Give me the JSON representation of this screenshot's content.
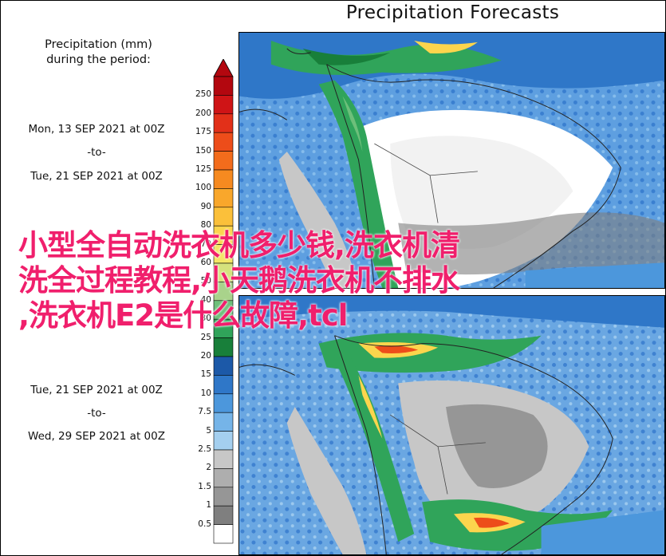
{
  "title": "Precipitation Forecasts",
  "legend": {
    "title_line1": "Precipitation (mm)",
    "title_line2": "during the period:"
  },
  "periods": [
    {
      "start": "Mon, 13 SEP 2021 at 00Z",
      "sep": "-to-",
      "end": "Tue, 21 SEP 2021 at 00Z"
    },
    {
      "start": "Tue, 21 SEP 2021 at 00Z",
      "sep": "-to-",
      "end": "Wed, 29 SEP 2021 at 00Z"
    }
  ],
  "colorbar": {
    "ticks": [
      "250",
      "200",
      "175",
      "150",
      "125",
      "100",
      "90",
      "80",
      "70",
      "60",
      "50",
      "40",
      "30",
      "25",
      "20",
      "15",
      "10",
      "7.5",
      "5",
      "2.5",
      "2",
      "1.5",
      "1",
      "0.5"
    ],
    "colors": [
      "#b3070f",
      "#cf1416",
      "#e23019",
      "#ed4d1a",
      "#f36c1c",
      "#f68a20",
      "#f9a72b",
      "#fbc03a",
      "#fcd54d",
      "#f4e665",
      "#d5e27d",
      "#a9d38b",
      "#6dbf7a",
      "#30a45a",
      "#187f3a",
      "#1c59a8",
      "#2f77c8",
      "#4c97dc",
      "#75b4e8",
      "#a4cfef",
      "#c7c7c7",
      "#aeaeae",
      "#969696",
      "#7f7f7f",
      "#ffffff"
    ]
  },
  "overlay_text": [
    "小型全自动洗衣机多少钱,洗衣机清",
    "洗全过程教程,小天鹅洗衣机不排水",
    ",洗衣机E2是什么故障,tcl"
  ]
}
